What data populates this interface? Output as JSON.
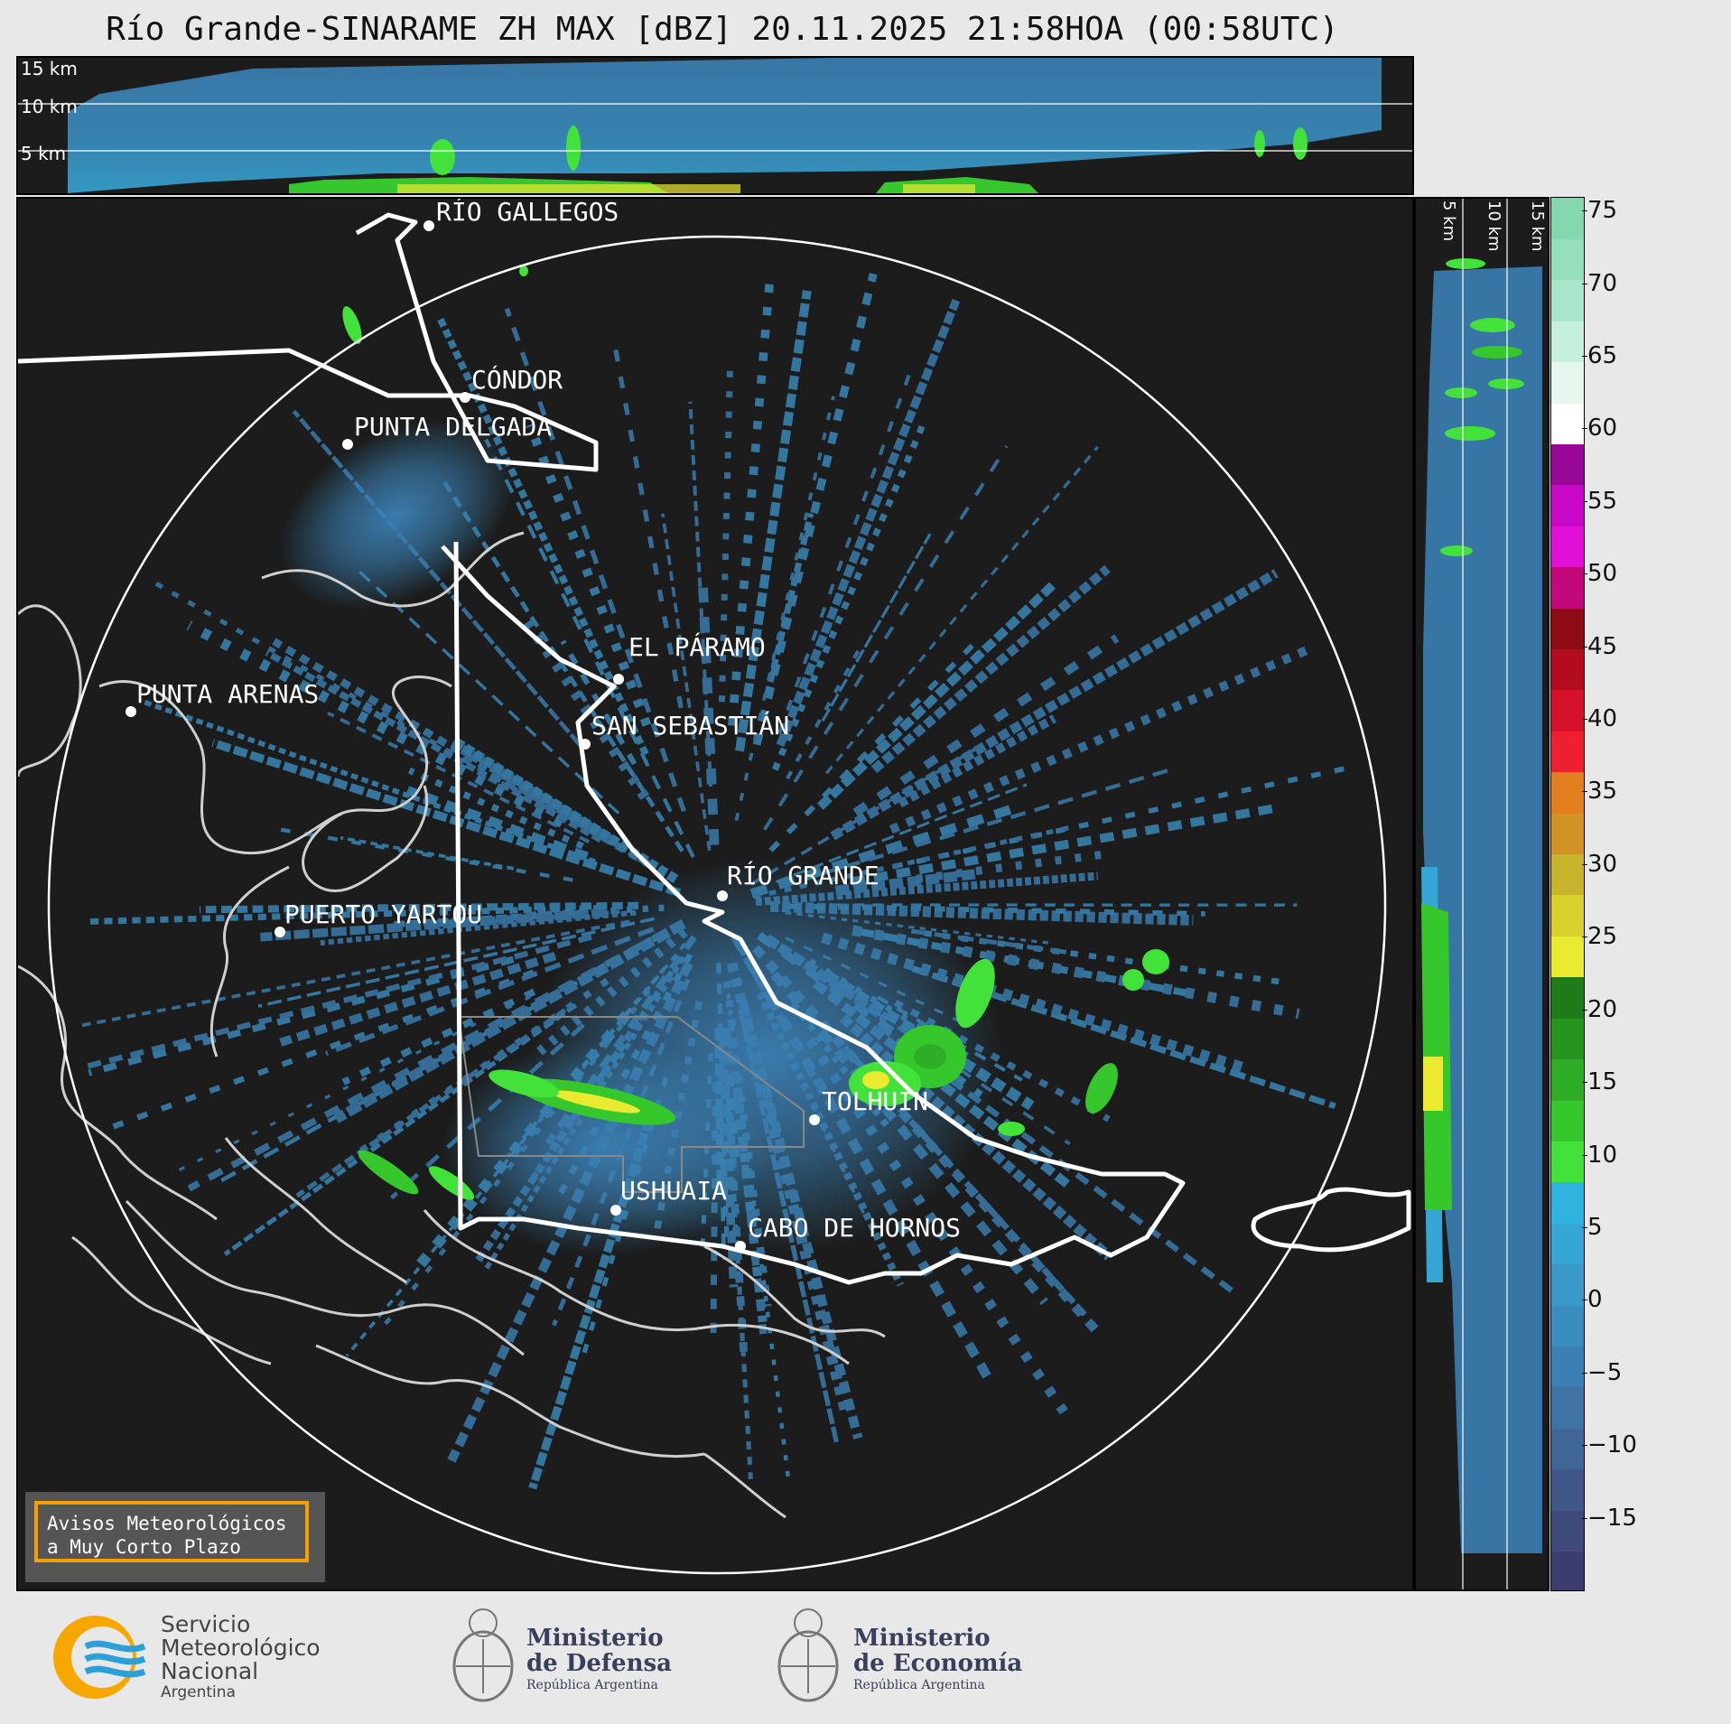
{
  "title": "Río Grande-SINARAME ZH MAX [dBZ] 20.11.2025 21:58HOA (00:58UTC)",
  "top_profile": {
    "labels": [
      "15 km",
      "10 km",
      "5 km"
    ]
  },
  "side_profile": {
    "labels": [
      "5 km",
      "10 km",
      "15 km"
    ]
  },
  "cities": [
    {
      "name": "RÍO GALLEGOS"
    },
    {
      "name": "CÓNDOR"
    },
    {
      "name": "PUNTA DELGADA"
    },
    {
      "name": "EL PÁRAMO"
    },
    {
      "name": "PUNTA ARENAS"
    },
    {
      "name": "SAN SEBASTIÁN"
    },
    {
      "name": "RÍO GRANDE"
    },
    {
      "name": "PUERTO YARTOU"
    },
    {
      "name": "TOLHUIN"
    },
    {
      "name": "USHUAIA"
    },
    {
      "name": "CABO DE HORNOS"
    }
  ],
  "colorbar": {
    "unit": "dBZ",
    "ticks": [
      "75",
      "70",
      "65",
      "60",
      "55",
      "50",
      "45",
      "40",
      "35",
      "30",
      "25",
      "20",
      "15",
      "10",
      "5",
      "0",
      "−5",
      "−10",
      "−15"
    ],
    "range": [
      -20,
      76
    ],
    "colors": [
      "#3a3d6e",
      "#3d4a7a",
      "#3f5889",
      "#406698",
      "#3f73a6",
      "#3b80b4",
      "#3a8dbf",
      "#3b99c9",
      "#36a6d4",
      "#2fb4df",
      "#43e23a",
      "#36c72d",
      "#2ead26",
      "#27941f",
      "#1f7b19",
      "#eaea30",
      "#d8d22e",
      "#c9b52b",
      "#d19325",
      "#e28020",
      "#ee2030",
      "#d4102a",
      "#b30c1f",
      "#8e0a14",
      "#c2087a",
      "#e010d8",
      "#c808c8",
      "#9a0898",
      "#ffffff",
      "#e6f7ee",
      "#c6efdc",
      "#a9e6cb",
      "#95dfbd",
      "#84d8b0"
    ]
  },
  "warning": {
    "line1": "Avisos Meteorológicos",
    "line2": "a Muy Corto Plazo"
  },
  "logos": {
    "smn": {
      "line1": "Servicio",
      "line2": "Meteorológico",
      "line3": "Nacional",
      "line4": "Argentina"
    },
    "defensa": {
      "line1": "Ministerio",
      "line2": "de Defensa",
      "line3": "República Argentina"
    },
    "economia": {
      "line1": "Ministerio",
      "line2": "de Economía",
      "line3": "República Argentina"
    }
  }
}
